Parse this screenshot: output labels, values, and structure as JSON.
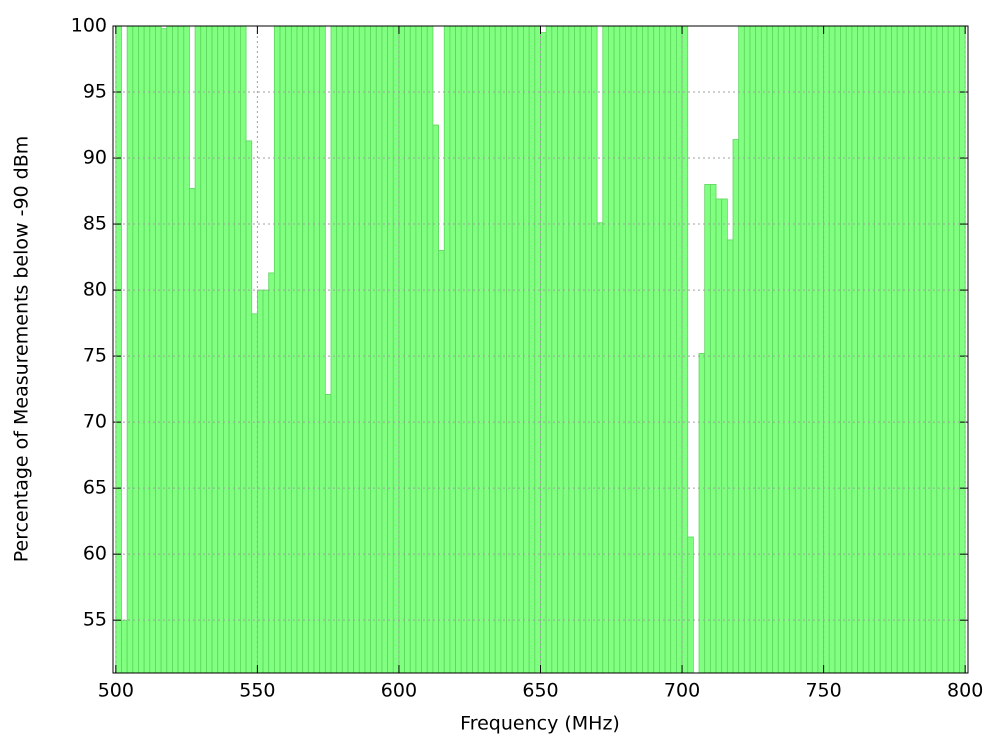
{
  "chart_data": {
    "type": "histogram",
    "xlabel": "Frequency (MHz)",
    "ylabel": "Percentage of Measurements below -90 dBm",
    "bins": [
      500,
      502,
      504,
      506,
      508,
      510,
      512,
      514,
      516,
      518,
      520,
      522,
      524,
      526,
      528,
      530,
      532,
      534,
      536,
      538,
      540,
      542,
      544,
      546,
      548,
      550,
      552,
      554,
      556,
      558,
      560,
      562,
      564,
      566,
      568,
      570,
      572,
      574,
      576,
      578,
      580,
      582,
      584,
      586,
      588,
      590,
      592,
      594,
      596,
      598,
      600,
      602,
      604,
      606,
      608,
      610,
      612,
      614,
      616,
      618,
      620,
      622,
      624,
      626,
      628,
      630,
      632,
      634,
      636,
      638,
      640,
      642,
      644,
      646,
      648,
      650,
      652,
      654,
      656,
      658,
      660,
      662,
      664,
      666,
      668,
      670,
      672,
      674,
      676,
      678,
      680,
      682,
      684,
      686,
      688,
      690,
      692,
      694,
      696,
      698,
      700,
      702,
      704,
      706,
      708,
      710,
      712,
      714,
      716,
      718,
      720,
      722,
      724,
      726,
      728,
      730,
      732,
      734,
      736,
      738,
      740,
      742,
      744,
      746,
      748,
      750,
      752,
      754,
      756,
      758,
      760,
      762,
      764,
      766,
      768,
      770,
      772,
      774,
      776,
      778,
      780,
      782,
      784,
      786,
      788,
      790,
      792,
      794,
      796,
      798,
      800
    ],
    "values": [
      100,
      55,
      100,
      100,
      100,
      100,
      100,
      100,
      99.8,
      100,
      100,
      100,
      100,
      87.7,
      100,
      100,
      100,
      100,
      100,
      100,
      100,
      100,
      100,
      91.3,
      78.2,
      80,
      80,
      81.3,
      100,
      100,
      100,
      100,
      100,
      100,
      100,
      100,
      100,
      72.1,
      100,
      100,
      100,
      100,
      100,
      100,
      100,
      100,
      100,
      100,
      100,
      100,
      100,
      100,
      100,
      100,
      100,
      100,
      92.5,
      83,
      100,
      100,
      100,
      100,
      100,
      100,
      100,
      100,
      100,
      100,
      100,
      100,
      100,
      100,
      100,
      100,
      100,
      99.5,
      100,
      100,
      100,
      100,
      100,
      100,
      100,
      100,
      100,
      85.1,
      100,
      100,
      100,
      100,
      100,
      100,
      100,
      100,
      100,
      100,
      100,
      100,
      100,
      100,
      100,
      61.3,
      51,
      75.2,
      88,
      88,
      86.9,
      86.9,
      83.8,
      91.4,
      100,
      100,
      100,
      100,
      100,
      100,
      100,
      100,
      100,
      100,
      100,
      100,
      100,
      100,
      100,
      100,
      100,
      100,
      100,
      100,
      100,
      100,
      100,
      100,
      100,
      100,
      100,
      100,
      100,
      100,
      100,
      100,
      100,
      100,
      100,
      100,
      100,
      100,
      100,
      100
    ],
    "color": "#80ff80",
    "edgecolor": "#5cd65c",
    "xlim": [
      499,
      801
    ],
    "ylim": [
      51,
      100
    ],
    "xticks": [
      500,
      550,
      600,
      650,
      700,
      750,
      800
    ],
    "yticks": [
      55,
      60,
      65,
      70,
      75,
      80,
      85,
      90,
      95,
      100
    ],
    "grid": true
  }
}
